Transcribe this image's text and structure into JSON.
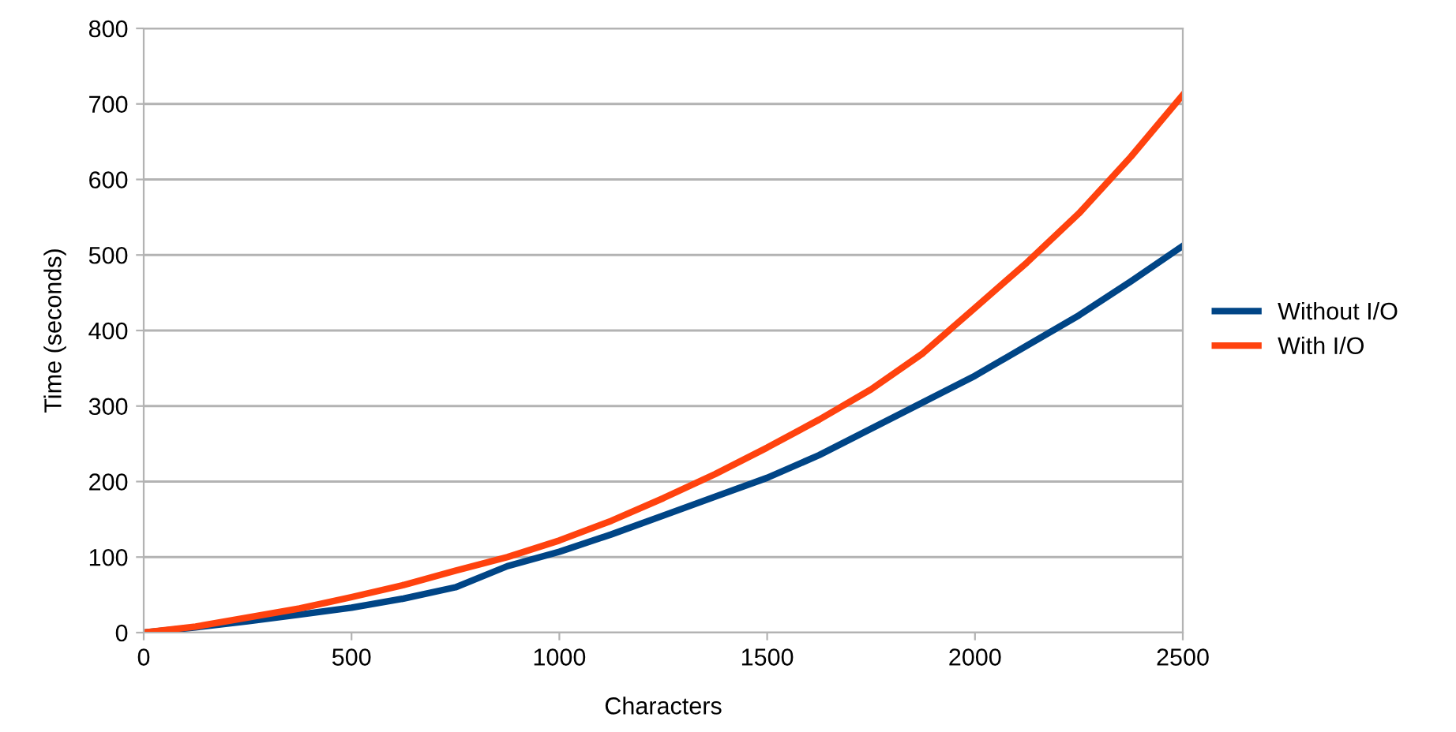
{
  "chart_data": {
    "type": "line",
    "xlabel": "Characters",
    "ylabel": "Time (seconds)",
    "x": [
      0,
      125,
      250,
      375,
      500,
      625,
      750,
      875,
      1000,
      1125,
      1250,
      1375,
      1500,
      1625,
      1750,
      1875,
      2000,
      2125,
      2250,
      2375,
      2500
    ],
    "series": [
      {
        "name": "Without I/O",
        "color": "#004586",
        "values": [
          0,
          7,
          15,
          24,
          33,
          45,
          60,
          88,
          107,
          130,
          155,
          180,
          205,
          235,
          270,
          305,
          340,
          380,
          420,
          465,
          512
        ]
      },
      {
        "name": "With I/O",
        "color": "#ff420e",
        "values": [
          0,
          8,
          20,
          32,
          47,
          63,
          82,
          100,
          122,
          148,
          178,
          210,
          245,
          282,
          322,
          370,
          430,
          490,
          555,
          630,
          712
        ]
      }
    ],
    "xlim": [
      0,
      2500
    ],
    "xticks": [
      0,
      500,
      1000,
      1500,
      2000,
      2500
    ],
    "ylim": [
      0,
      800
    ],
    "yticks": [
      0,
      100,
      200,
      300,
      400,
      500,
      600,
      700,
      800
    ],
    "grid": "y",
    "legend": "right",
    "marker": "none",
    "line_style": "solid"
  }
}
